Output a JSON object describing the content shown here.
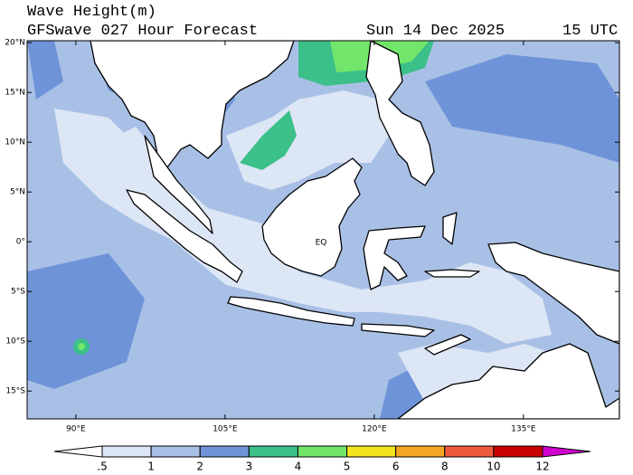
{
  "header": {
    "title": "Wave Height(m)",
    "subtitle": "GFSwave 027 Hour Forecast",
    "date": "Sun 14 Dec 2025",
    "time": "15 UTC"
  },
  "map": {
    "lat_range": [
      -17.8,
      20.2
    ],
    "lon_range": [
      85.1,
      144.65
    ],
    "lat_ticks": [
      {
        "value": 20,
        "label": "20°N"
      },
      {
        "value": 15,
        "label": "15°N"
      },
      {
        "value": 10,
        "label": "10°N"
      },
      {
        "value": 5,
        "label": "5°N"
      },
      {
        "value": 0,
        "label": "0°"
      },
      {
        "value": -5,
        "label": "5°S"
      },
      {
        "value": -10,
        "label": "10°S"
      },
      {
        "value": -15,
        "label": "15°S"
      }
    ],
    "lon_ticks": [
      {
        "value": 90,
        "label": "90°E"
      },
      {
        "value": 105,
        "label": "105°E"
      },
      {
        "value": 120,
        "label": "120°E"
      },
      {
        "value": 135,
        "label": "135°E"
      }
    ],
    "equator_label": "EQ"
  },
  "colorbar": {
    "levels": [
      {
        "value": 0.5,
        "label": ".5"
      },
      1,
      2,
      3,
      4,
      5,
      6,
      8,
      10,
      12
    ],
    "colors": [
      "#ffffff",
      "#dde6f5",
      "#a9c0e6",
      "#6e93d8",
      "#3cc08a",
      "#72e66a",
      "#f2e41e",
      "#f5a623",
      "#f05a3c",
      "#c80000",
      "#d000d0"
    ]
  }
}
